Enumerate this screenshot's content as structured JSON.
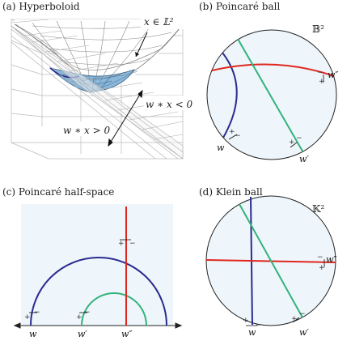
{
  "panels": {
    "hyperboloid": {
      "caption": "(a) Hyperboloid",
      "surface_label": "x ∈ 𝕃²",
      "region_minus": "w ∗ x < 0",
      "region_plus": "w ∗ x > 0"
    },
    "poincare_ball": {
      "caption": "(b) Poincaré ball",
      "space_symbol": "𝔹²",
      "labels": {
        "w": "w",
        "w_prime": "w′",
        "w_double_prime": "w″"
      }
    },
    "poincare_half_space": {
      "caption": "(c) Poincaré half-space",
      "space_symbol": "ℍ²",
      "labels": {
        "w": "w",
        "w_prime": "w′",
        "w_double_prime": "w″"
      }
    },
    "klein_ball": {
      "caption": "(d) Klein ball",
      "space_symbol": "𝕂²",
      "labels": {
        "w": "w",
        "w_prime": "w′",
        "w_double_prime": "w″"
      }
    }
  },
  "signs": {
    "plus": "+",
    "minus": "−"
  },
  "colors": {
    "blue": "#2b2b8f",
    "green": "#33b27a",
    "red": "#e0271e",
    "disk_fill": "#eef6fb",
    "mesh_light": "#9a9a9a",
    "mesh_blue": "#5a98c8"
  }
}
